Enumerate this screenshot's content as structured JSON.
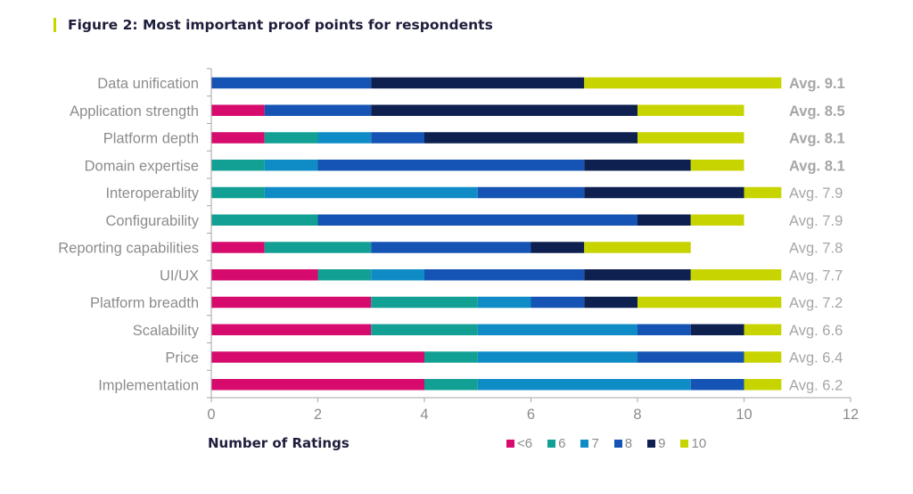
{
  "title": "Figure 2: Most important proof points for respondents",
  "chart_data": {
    "type": "bar",
    "orientation": "horizontal",
    "stacked": true,
    "title": "Figure 2: Most important proof points for respondents",
    "xlabel": "Number of Ratings",
    "ylabel": "",
    "xlim": [
      0,
      12
    ],
    "xticks": [
      0,
      2,
      4,
      6,
      8,
      10,
      12
    ],
    "grid": false,
    "legend_position": "bottom",
    "categories": [
      "Data unification",
      "Application strength",
      "Platform depth",
      "Domain expertise",
      "Interoperablity",
      "Configurability",
      "Reporting capabilities",
      "UI/UX",
      "Platform breadth",
      "Scalability",
      "Price",
      "Implementation"
    ],
    "series": [
      {
        "name": "<6",
        "color": "#d60b6d",
        "values": [
          0,
          1,
          1,
          0,
          0,
          0,
          1,
          2,
          3,
          3,
          4,
          4
        ]
      },
      {
        "name": "6",
        "color": "#13a094",
        "values": [
          0,
          0,
          1,
          1,
          1,
          2,
          2,
          1,
          2,
          2,
          1,
          1
        ]
      },
      {
        "name": "7",
        "color": "#0f8cc6",
        "values": [
          0,
          0,
          1,
          1,
          4,
          0,
          0,
          1,
          1,
          3,
          3,
          4
        ]
      },
      {
        "name": "8",
        "color": "#1554b4",
        "values": [
          3,
          2,
          1,
          5,
          2,
          6,
          3,
          3,
          1,
          1,
          2,
          1
        ]
      },
      {
        "name": "9",
        "color": "#0d2050",
        "values": [
          4,
          5,
          4,
          2,
          3,
          1,
          1,
          2,
          1,
          1,
          0,
          0
        ]
      },
      {
        "name": "10",
        "color": "#c8d400",
        "values": [
          3.7,
          2,
          2,
          1,
          0.7,
          1,
          2,
          1.7,
          2.7,
          0.7,
          0.7,
          0.7
        ]
      }
    ],
    "annotations": [
      {
        "text": "Avg. 9.1",
        "bold": true
      },
      {
        "text": "Avg. 8.5",
        "bold": true
      },
      {
        "text": "Avg. 8.1",
        "bold": true
      },
      {
        "text": "Avg. 8.1",
        "bold": true
      },
      {
        "text": "Avg. 7.9",
        "bold": false
      },
      {
        "text": "Avg. 7.9",
        "bold": false
      },
      {
        "text": "Avg. 7.8",
        "bold": false
      },
      {
        "text": "Avg. 7.7",
        "bold": false
      },
      {
        "text": "Avg. 7.2",
        "bold": false
      },
      {
        "text": "Avg. 6.6",
        "bold": false
      },
      {
        "text": "Avg. 6.4",
        "bold": false
      },
      {
        "text": "Avg. 6.2",
        "bold": false
      }
    ]
  }
}
